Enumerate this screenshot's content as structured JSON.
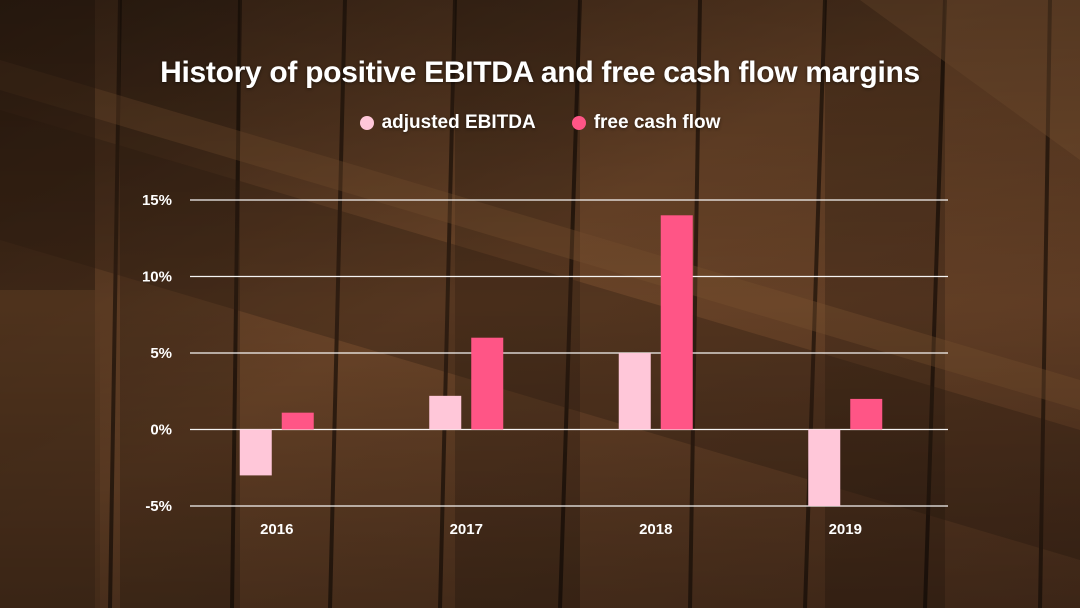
{
  "chart_data": {
    "type": "bar",
    "title": "History of positive EBITDA and free cash flow margins",
    "categories": [
      "2016",
      "2017",
      "2018",
      "2019"
    ],
    "series": [
      {
        "name": "adjusted EBITDA",
        "values": [
          -3,
          2.2,
          5,
          -5
        ],
        "color": "#ffc7d9"
      },
      {
        "name": "free cash flow",
        "values": [
          1.1,
          6,
          14,
          2
        ],
        "color": "#ff5586"
      }
    ],
    "ylim": [
      -5,
      15
    ],
    "yticks": [
      -5,
      0,
      5,
      10,
      15
    ],
    "ytick_labels": [
      "-5%",
      "0%",
      "5%",
      "10%",
      "15%"
    ],
    "xlabel": "",
    "ylabel": "",
    "grid": true,
    "legend_position": "top-center"
  }
}
